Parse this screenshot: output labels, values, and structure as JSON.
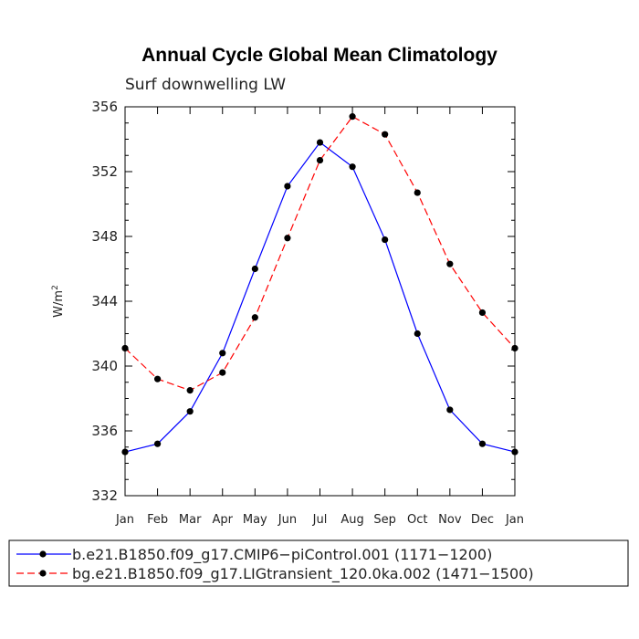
{
  "chart_data": {
    "type": "line",
    "title": "Annual Cycle Global Mean Climatology",
    "subtitle": "Surf downwelling LW",
    "ylabel": "W/m",
    "ylabel_superscript": "2",
    "ylim": [
      332,
      356
    ],
    "yticks": [
      "332",
      "336",
      "340",
      "344",
      "348",
      "352",
      "356"
    ],
    "categories": [
      "Jan",
      "Feb",
      "Mar",
      "Apr",
      "May",
      "Jun",
      "Jul",
      "Aug",
      "Sep",
      "Oct",
      "Nov",
      "Dec",
      "Jan"
    ],
    "grid": false,
    "legend_position": "bottom",
    "series": [
      {
        "name": "b.e21.B1850.f09_g17.CMIP6−piControl.001 (1171−1200)",
        "color": "#0000ff",
        "dash": "solid",
        "marker": "filled-circle",
        "values": [
          334.7,
          335.2,
          337.2,
          340.8,
          346.0,
          351.1,
          353.8,
          352.3,
          347.8,
          342.0,
          337.3,
          335.2,
          334.7
        ]
      },
      {
        "name": "bg.e21.B1850.f09_g17.LIGtransient_120.0ka.002 (1471−1500)",
        "color": "#ff0000",
        "dash": "dashed",
        "marker": "filled-circle",
        "values": [
          341.1,
          339.2,
          338.5,
          339.6,
          343.0,
          347.9,
          352.7,
          355.4,
          354.3,
          350.7,
          346.3,
          343.3,
          341.1
        ]
      }
    ]
  }
}
